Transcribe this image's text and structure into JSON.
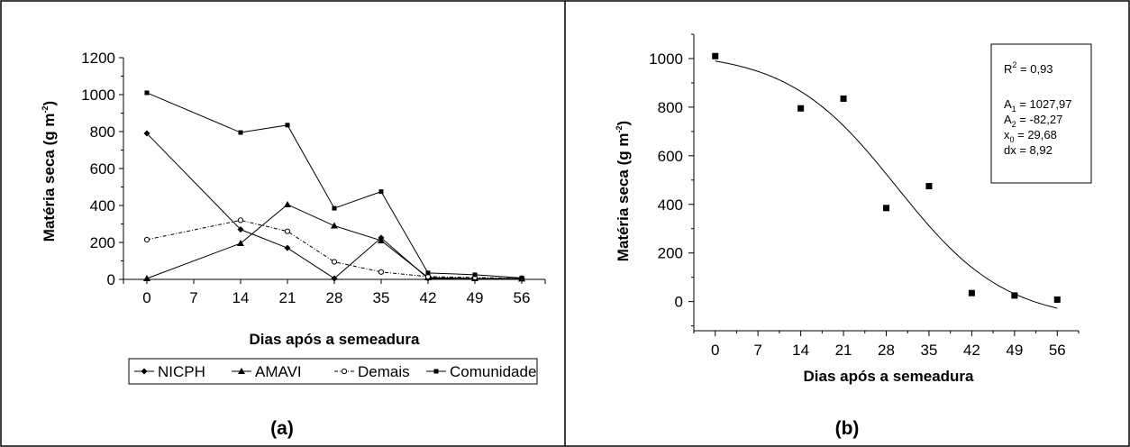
{
  "chart_data": [
    {
      "panel": "(a)",
      "type": "line",
      "xlabel": "Dias após a semeadura",
      "ylabel": "Matéria seca (g m",
      "ylabel_sup": "-2",
      "ylabel_close": ")",
      "x_ticks": [
        0,
        7,
        14,
        21,
        28,
        35,
        42,
        49,
        56
      ],
      "y_ticks": [
        0,
        200,
        400,
        600,
        800,
        1000,
        1200
      ],
      "xlim": [
        -3.5,
        59.5
      ],
      "ylim": [
        0,
        1200
      ],
      "legend_position": "bottom",
      "series": [
        {
          "name": "NICPH",
          "marker": "diamond",
          "dash": "solid",
          "points": [
            [
              0,
              790
            ],
            [
              14,
              270
            ],
            [
              21,
              170
            ],
            [
              28,
              5
            ],
            [
              35,
              225
            ],
            [
              42,
              5
            ],
            [
              49,
              5
            ],
            [
              56,
              5
            ]
          ]
        },
        {
          "name": "AMAVI",
          "marker": "triangle",
          "dash": "solid",
          "points": [
            [
              0,
              5
            ],
            [
              14,
              195
            ],
            [
              21,
              405
            ],
            [
              28,
              290
            ],
            [
              35,
              210
            ],
            [
              42,
              10
            ],
            [
              49,
              5
            ],
            [
              56,
              3
            ]
          ]
        },
        {
          "name": "Demais",
          "marker": "circle-open",
          "dash": "dashdot",
          "points": [
            [
              0,
              215
            ],
            [
              14,
              320
            ],
            [
              21,
              260
            ],
            [
              28,
              95
            ],
            [
              35,
              40
            ],
            [
              42,
              15
            ],
            [
              49,
              10
            ],
            [
              56,
              5
            ]
          ]
        },
        {
          "name": "Comunidade",
          "marker": "square",
          "dash": "solid",
          "points": [
            [
              0,
              1010
            ],
            [
              14,
              795
            ],
            [
              21,
              835
            ],
            [
              28,
              385
            ],
            [
              35,
              475
            ],
            [
              42,
              35
            ],
            [
              49,
              25
            ],
            [
              56,
              8
            ]
          ]
        }
      ]
    },
    {
      "panel": "(b)",
      "type": "scatter",
      "xlabel": "Dias após a semeadura",
      "ylabel": "Matéria seca (g m",
      "ylabel_sup": "-2",
      "ylabel_close": ")",
      "x_ticks": [
        0,
        7,
        14,
        21,
        28,
        35,
        42,
        49,
        56
      ],
      "y_ticks": [
        0,
        200,
        400,
        600,
        800,
        1000
      ],
      "xlim": [
        -3.5,
        59.5
      ],
      "ylim": [
        -120,
        1100
      ],
      "points": [
        [
          0,
          1010
        ],
        [
          14,
          795
        ],
        [
          21,
          835
        ],
        [
          28,
          385
        ],
        [
          35,
          475
        ],
        [
          42,
          35
        ],
        [
          49,
          25
        ],
        [
          56,
          8
        ]
      ],
      "fit": {
        "model": "sigmoidal",
        "A1": 1027.97,
        "A2": -82.27,
        "x0": 29.68,
        "dx": 8.92,
        "range": [
          0,
          56
        ]
      },
      "stats_box": {
        "position": "top-right",
        "r2_label": "R",
        "r2_sup": "2",
        "r2_value": " = 0,93",
        "a1_label": "A",
        "a1_sub": "1",
        "a1_value": " = 1027,97",
        "a2_label": "A",
        "a2_sub": "2",
        "a2_value": " = -82,27",
        "x0_label": "x",
        "x0_sub": "0",
        "x0_value": " = 29,68",
        "dx_text": "dx = 8,92"
      }
    }
  ]
}
